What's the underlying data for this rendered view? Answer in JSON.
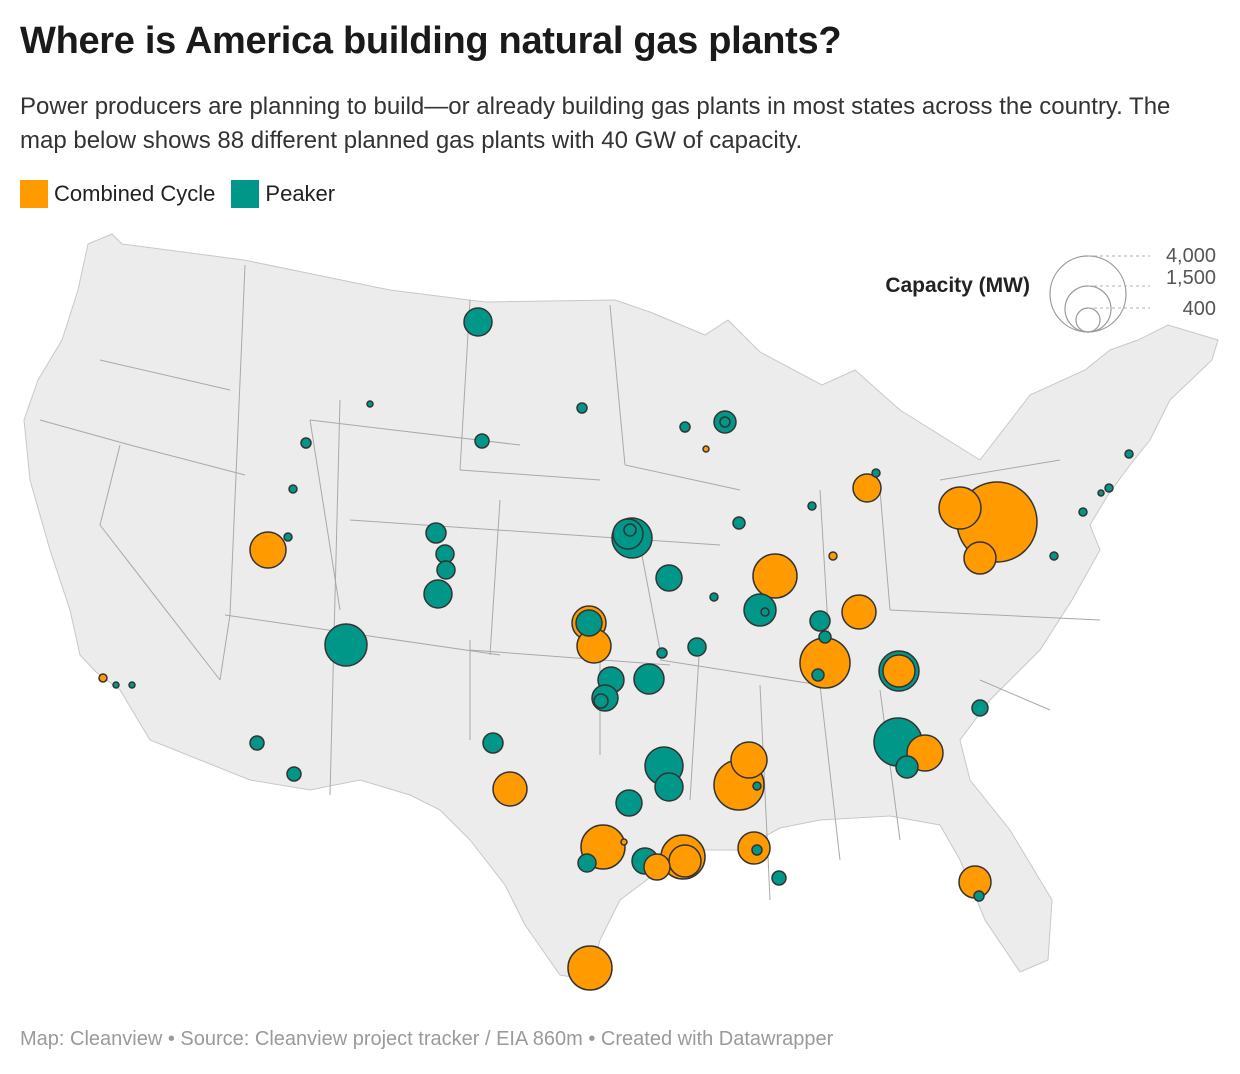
{
  "title": "Where is America building natural gas plants?",
  "subtitle": "Power producers are planning to build—or already building gas plants in most states across the country. The map below shows 88 different planned gas plants with 40 GW of capacity.",
  "legend": [
    {
      "label": "Combined Cycle",
      "color": "#ff9b00"
    },
    {
      "label": "Peaker",
      "color": "#009688"
    }
  ],
  "size_legend": {
    "title": "Capacity (MW)",
    "ticks": [
      {
        "label": "4,000",
        "mw": 4000
      },
      {
        "label": "1,500",
        "mw": 1500
      },
      {
        "label": "400",
        "mw": 400
      }
    ]
  },
  "colors": {
    "land": "#ececec",
    "state_border": "#a9a9a9",
    "marker_stroke": "#333333",
    "combined_cycle": "#ff9b00",
    "peaker": "#009688"
  },
  "footer": "Map: Cleanview • Source: Cleanview project tracker / EIA 860m • Created with Datawrapper"
}
